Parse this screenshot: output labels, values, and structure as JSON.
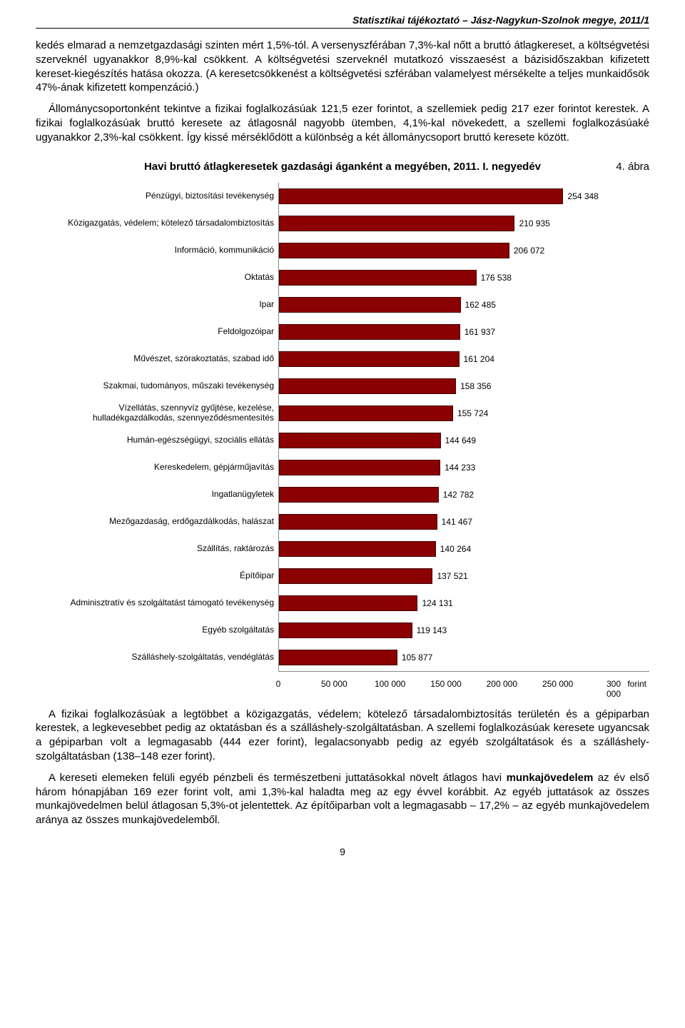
{
  "header": "Statisztikai tájékoztató – Jász-Nagykun-Szolnok megye, 2011/1",
  "para1": "kedés elmarad a nemzetgazdasági szinten mért 1,5%-tól. A versenyszférában 7,3%-kal nőtt a bruttó átlagkereset, a költségvetési szerveknél ugyanakkor 8,9%-kal csökkent. A költségvetési szerveknél mutatkozó visszaesést a bázisidőszakban kifizetett kereset-kiegészítés hatása okozza. (A keresetcsökkenést a költségvetési szférában valamelyest mérsékelte a teljes munkaidősök 47%-ának kifizetett kompenzáció.)",
  "para2": "Állománycsoportonként tekintve a fizikai foglalkozásúak 121,5 ezer forintot, a szellemiek pedig 217 ezer forintot kerestek. A fizikai foglalkozásúak bruttó keresete az átlagosnál nagyobb ütemben, 4,1%-kal növekedett, a szellemi foglalkozásúaké ugyanakkor 2,3%-kal csökkent. Így kissé mérséklődött a különbség a két állománycsoport bruttó keresete között.",
  "fig_label": "4. ábra",
  "chart": {
    "title": "Havi bruttó átlagkeresetek gazdasági áganként a megyében, 2011. I. negyedév",
    "type": "bar-horizontal",
    "bar_color": "#8b0000",
    "axis_color": "#888888",
    "font_size": 12,
    "xmax": 300000,
    "xticks": [
      0,
      50000,
      100000,
      150000,
      200000,
      250000,
      300000
    ],
    "xtick_labels": [
      "0",
      "50 000",
      "100 000",
      "150 000",
      "200 000",
      "250 000",
      "300 000"
    ],
    "xunit": "forint",
    "items": [
      {
        "label": "Pénzügyi, biztosítási tevékenység",
        "value": 254348,
        "value_label": "254 348"
      },
      {
        "label": "Közigazgatás, védelem; kötelező társadalombiztosítás",
        "value": 210935,
        "value_label": "210 935"
      },
      {
        "label": "Információ, kommunikáció",
        "value": 206072,
        "value_label": "206 072"
      },
      {
        "label": "Oktatás",
        "value": 176538,
        "value_label": "176 538"
      },
      {
        "label": "Ipar",
        "value": 162485,
        "value_label": "162 485"
      },
      {
        "label": "Feldolgozóipar",
        "value": 161937,
        "value_label": "161 937"
      },
      {
        "label": "Művészet, szórakoztatás, szabad idő",
        "value": 161204,
        "value_label": "161 204"
      },
      {
        "label": "Szakmai, tudományos, műszaki tevékenység",
        "value": 158356,
        "value_label": "158 356"
      },
      {
        "label": "Vízellátás, szennyvíz gyűjtése, kezelése, hulladékgazdálkodás, szennyeződésmentesítés",
        "value": 155724,
        "value_label": "155 724"
      },
      {
        "label": "Humán-egészségügyi, szociális ellátás",
        "value": 144649,
        "value_label": "144 649"
      },
      {
        "label": "Kereskedelem, gépjárműjavítás",
        "value": 144233,
        "value_label": "144 233"
      },
      {
        "label": "Ingatlanügyletek",
        "value": 142782,
        "value_label": "142 782"
      },
      {
        "label": "Mezőgazdaság, erdőgazdálkodás, halászat",
        "value": 141467,
        "value_label": "141 467"
      },
      {
        "label": "Szállítás, raktározás",
        "value": 140264,
        "value_label": "140 264"
      },
      {
        "label": "Építőipar",
        "value": 137521,
        "value_label": "137 521"
      },
      {
        "label": "Adminisztratív és szolgáltatást támogató tevékenység",
        "value": 124131,
        "value_label": "124 131"
      },
      {
        "label": "Egyéb szolgáltatás",
        "value": 119143,
        "value_label": "119 143"
      },
      {
        "label": "Szálláshely-szolgáltatás, vendéglátás",
        "value": 105877,
        "value_label": "105 877"
      }
    ]
  },
  "para3_html": "A fizikai foglalkozásúak a legtöbbet a közigazgatás, védelem; kötelező társadalombiztosítás területén és a gépiparban kerestek, a legkevesebbet pedig az oktatásban és a szálláshely-szolgáltatásban. A szellemi foglalkozásúak keresete ugyancsak a gépiparban volt a legmagasabb (444 ezer forint), legalacsonyabb pedig az egyéb szolgáltatások és a szálláshely-szolgáltatásban (138–148 ezer forint).",
  "para4_prefix": "A kereseti elemeken felüli egyéb pénzbeli és természetbeni juttatásokkal növelt átlagos havi ",
  "para4_bold": "munkajövedelem",
  "para4_suffix": " az év első három hónapjában 169 ezer forint volt, ami 1,3%-kal haladta meg az egy évvel korábbit. Az egyéb juttatások az összes munkajövedelmen belül átlagosan 5,3%-ot jelentettek. Az építőiparban volt a legmagasabb – 17,2% – az egyéb munkajövedelem aránya az összes munkajövedelemből.",
  "page_number": "9"
}
